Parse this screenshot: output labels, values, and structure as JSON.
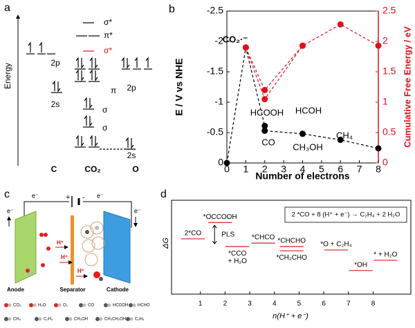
{
  "figure": {
    "panel_labels": [
      "a",
      "b",
      "c",
      "d"
    ]
  },
  "mo_diagram": {
    "y_label": "Energy",
    "c_2p": "2p",
    "c_2s": "2s",
    "sigma_star": "σ*",
    "pi_star": "π*",
    "sigma_star_red": "σ*",
    "pi": "π",
    "sigma_1": "σ",
    "sigma_2": "σ",
    "o_2p": "2p",
    "o_2s": "2s",
    "c_label": "C",
    "co2_label": "CO₂",
    "o_label": "O"
  },
  "electrolyzer": {
    "wire_labels": [
      "e⁻",
      "+",
      "-",
      "e⁻",
      "e⁻",
      "e⁻"
    ],
    "protons": [
      "H⁺",
      "H⁺",
      "H⁺"
    ],
    "anode": "Anode",
    "separator": "Separator",
    "cathode": "Cathode",
    "legend": [
      "CO₂",
      "H₂O",
      "O₂",
      "CO",
      "HCOOH",
      "HCHO",
      "CH₄",
      "C₂H₄",
      "CH₃OH",
      "CH₃CH₂OH",
      "C₂H₆"
    ]
  },
  "chart_data": [
    {
      "type": "line",
      "xlabel": "Number of electrons",
      "ylabel": "E / V vs NHE",
      "y2label": "Cumulative Free Energy / eV",
      "xlim": [
        0,
        8
      ],
      "xticks": [
        0,
        1,
        2,
        3,
        4,
        5,
        6,
        7,
        8
      ],
      "ylim": [
        0,
        -2.5
      ],
      "yticks": [
        0,
        -0.5,
        -1,
        -1.5,
        -2,
        -2.5
      ],
      "y2lim": [
        0,
        2.5
      ],
      "y2ticks": [
        0,
        0.5,
        1,
        1.5,
        2,
        2.5
      ],
      "y2color": "#e0101e",
      "series": [
        {
          "color": "#000000",
          "x": [
            0,
            1,
            2,
            2,
            4,
            6,
            8
          ],
          "values": [
            0,
            -1.9,
            -0.61,
            -0.53,
            -0.48,
            -0.38,
            -0.24
          ]
        },
        {
          "color": "#e0101e",
          "axis": "y2",
          "x": [
            1,
            2,
            4,
            6,
            8
          ],
          "values": [
            1.9,
            1.2,
            1.93,
            2.28,
            1.93
          ]
        },
        {
          "color": "#e0101e",
          "axis": "y2",
          "x": [
            1,
            2,
            4
          ],
          "values": [
            1.9,
            1.05,
            1.93
          ]
        }
      ],
      "annotations": [
        "CO₂·⁻",
        "HCOOH",
        "CO",
        "HCOH",
        "CH₃OH",
        "CH₄"
      ]
    },
    {
      "type": "energy-levels",
      "xlabel": "n(H⁺ + e⁻)",
      "ylabel": "ΔG",
      "xlim": [
        0,
        9.5
      ],
      "xticks": [
        1,
        2,
        3,
        4,
        5,
        6,
        7,
        8
      ],
      "ylim": [
        0,
        1
      ],
      "color": "#e03030",
      "categories": [
        "2*CO",
        "*OCCOOH",
        "*CCO\n+ H₂O",
        "*CHCO",
        "*CHCHO",
        "*CH₂CHO",
        "*O + C₂H₄",
        "*OH",
        "* + H₂O"
      ],
      "x": [
        0.7,
        1.8,
        2.5,
        3.55,
        4.7,
        4.7,
        6.5,
        7.5,
        8.5
      ],
      "values": [
        0.63,
        0.82,
        0.54,
        0.58,
        0.54,
        0.49,
        0.5,
        0.26,
        0.38
      ],
      "annotations": [
        "PLS",
        "2 *CO + 8 (H⁺ + e⁻) → C₂H₄ + 2 H₂O"
      ]
    }
  ]
}
